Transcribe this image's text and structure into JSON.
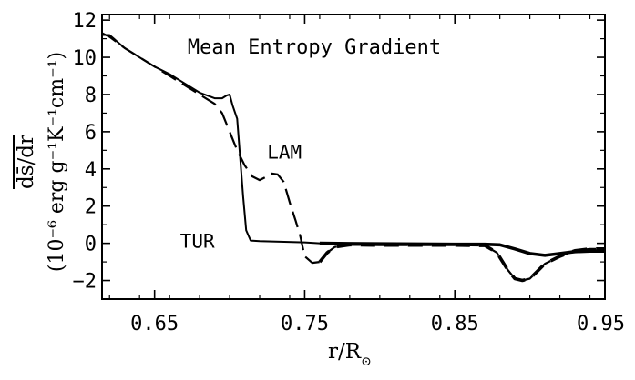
{
  "chart_data": {
    "type": "line",
    "title": "Mean Entropy Gradient",
    "xlabel": "r/R⊙",
    "xlabel_main": "r/R",
    "xlabel_sub": "⊙",
    "ylabel": "ds̄/dr",
    "ylabel_units": "(10⁻⁶ erg g⁻¹K⁻¹cm⁻¹)",
    "xlim": [
      0.615,
      0.95
    ],
    "ylim": [
      -3,
      12.3
    ],
    "xticks": [
      0.65,
      0.75,
      0.85,
      0.95
    ],
    "xtick_labels": [
      "0.65",
      "0.75",
      "0.85",
      "0.95"
    ],
    "yticks": [
      -2,
      0,
      2,
      4,
      6,
      8,
      10,
      12
    ],
    "ytick_labels": [
      "−2",
      "0",
      "2",
      "4",
      "6",
      "8",
      "10",
      "12"
    ],
    "grid": false,
    "series": [
      {
        "name": "TUR",
        "style": "solid",
        "x": [
          0.615,
          0.62,
          0.63,
          0.64,
          0.65,
          0.66,
          0.67,
          0.68,
          0.69,
          0.695,
          0.698,
          0.7,
          0.702,
          0.705,
          0.709,
          0.711,
          0.714,
          0.72,
          0.75,
          0.76,
          0.8,
          0.85,
          0.87,
          0.88,
          0.89,
          0.9,
          0.91,
          0.92,
          0.93,
          0.94,
          0.95
        ],
        "y": [
          11.2,
          11.2,
          10.5,
          10.0,
          9.5,
          9.1,
          8.6,
          8.1,
          7.8,
          7.8,
          7.95,
          8.0,
          7.4,
          6.7,
          2.5,
          0.7,
          0.15,
          0.12,
          0.05,
          0.0,
          -0.03,
          -0.05,
          -0.05,
          -0.08,
          -0.3,
          -0.55,
          -0.65,
          -0.55,
          -0.45,
          -0.42,
          -0.42
        ]
      },
      {
        "name": "LAM",
        "style": "dashed",
        "x": [
          0.615,
          0.62,
          0.63,
          0.64,
          0.65,
          0.66,
          0.67,
          0.68,
          0.69,
          0.695,
          0.7,
          0.705,
          0.71,
          0.715,
          0.72,
          0.725,
          0.728,
          0.732,
          0.736,
          0.74,
          0.744,
          0.747,
          0.75,
          0.755,
          0.76,
          0.765,
          0.77,
          0.78,
          0.8,
          0.85,
          0.87,
          0.878,
          0.885,
          0.89,
          0.895,
          0.9,
          0.905,
          0.91,
          0.92,
          0.93,
          0.94,
          0.95
        ],
        "y": [
          11.3,
          11.1,
          10.5,
          10.0,
          9.5,
          9.0,
          8.5,
          8.0,
          7.5,
          7.0,
          6.0,
          5.0,
          4.2,
          3.6,
          3.4,
          3.6,
          3.75,
          3.7,
          3.3,
          2.2,
          1.2,
          0.4,
          -0.7,
          -1.05,
          -1.0,
          -0.5,
          -0.2,
          -0.08,
          -0.1,
          -0.1,
          -0.12,
          -0.5,
          -1.4,
          -1.9,
          -2.0,
          -1.9,
          -1.5,
          -1.1,
          -0.7,
          -0.4,
          -0.3,
          -0.3
        ]
      }
    ],
    "annotations": [
      {
        "text": "Mean Entropy Gradient",
        "x": 0.672,
        "y": 10.2
      },
      {
        "text": "LAM",
        "x": 0.725,
        "y": 4.55
      },
      {
        "text": "TUR",
        "x": 0.667,
        "y": -0.25
      }
    ]
  }
}
